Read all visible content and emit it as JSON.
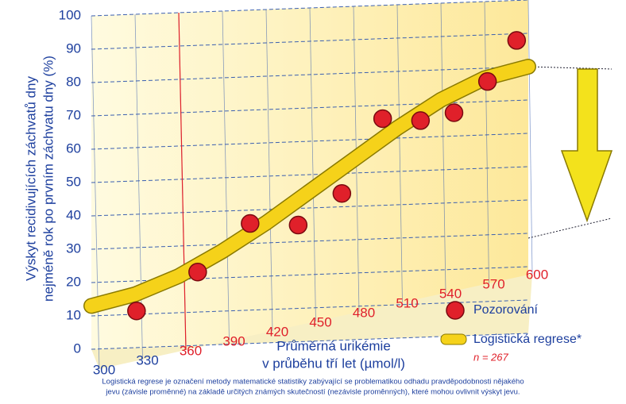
{
  "chart_data": {
    "type": "scatter",
    "ylabel": [
      "Výskyt recidivujících záchvatů dny",
      "nejméně rok po prvním záchvatu dny (%)"
    ],
    "xlabel": [
      "Průměrná urikémie",
      "v průběhu tří let (µmol/l)"
    ],
    "xlim": [
      300,
      600
    ],
    "ylim": [
      0,
      100
    ],
    "xticks": [
      300,
      330,
      360,
      390,
      420,
      450,
      480,
      510,
      540,
      570,
      600
    ],
    "yticks": [
      0,
      10,
      20,
      30,
      40,
      50,
      60,
      70,
      80,
      90,
      100
    ],
    "highlight_x": 360,
    "grid": true,
    "series": [
      {
        "name": "Pozorování",
        "color": "#e0202a",
        "x": [
          331,
          373,
          409,
          442,
          472,
          500,
          526,
          549,
          572,
          592
        ],
        "values": [
          11,
          22,
          36,
          35,
          44,
          66,
          65,
          67,
          76,
          88
        ]
      },
      {
        "name": "Logistická regrese*",
        "color": "#f5d21a",
        "type": "line",
        "x": [
          300,
          330,
          360,
          390,
          420,
          450,
          480,
          510,
          540,
          570,
          600
        ],
        "values": [
          13,
          16,
          21,
          28,
          36,
          45,
          54,
          63,
          71,
          77,
          80
        ]
      }
    ],
    "note": "n = 267",
    "footnote": [
      "Logistická regrese je označení metody matematické statistiky zabývající se problematikou odhadu pravděpodobnosti nějakého",
      "jevu (závisle proměnné) na základě určitých známých skutečností (nezávisle proměnných), které mohou ovlivnit výskyt jevu."
    ]
  }
}
